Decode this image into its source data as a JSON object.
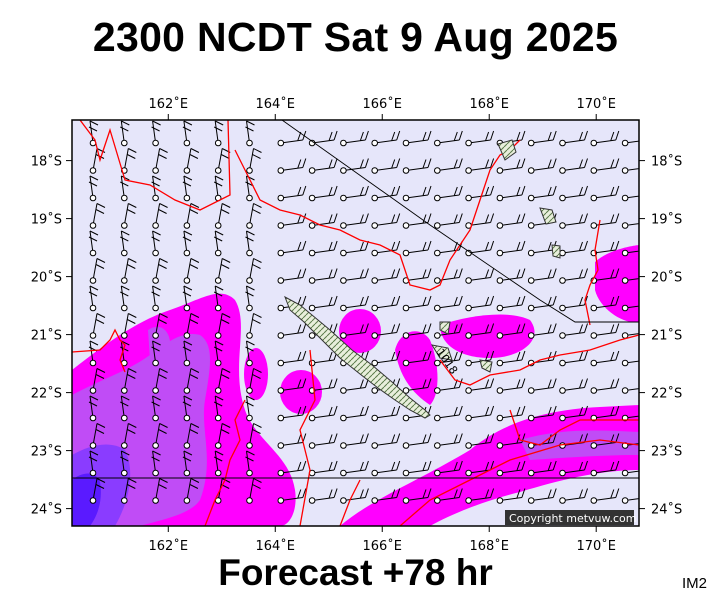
{
  "title": "2300 NCDT Sat 9 Aug 2025",
  "footer": "Forecast +78 hr",
  "image_code": "IM2",
  "copyright": "Copyright metvuw.com",
  "contour_label": "1018",
  "map": {
    "lon_range": [
      160.2,
      170.8
    ],
    "lat_range": [
      -24.3,
      -17.3
    ],
    "lon_ticks": [
      {
        "value": 162,
        "label": "162˚E"
      },
      {
        "value": 164,
        "label": "164˚E"
      },
      {
        "value": 166,
        "label": "166˚E"
      },
      {
        "value": 168,
        "label": "168˚E"
      },
      {
        "value": 170,
        "label": "170˚E"
      }
    ],
    "lat_ticks": [
      {
        "value": -18,
        "label": "18˚S"
      },
      {
        "value": -19,
        "label": "19˚S"
      },
      {
        "value": -20,
        "label": "20˚S"
      },
      {
        "value": -21,
        "label": "21˚S"
      },
      {
        "value": -22,
        "label": "22˚S"
      },
      {
        "value": -23,
        "label": "23˚S"
      },
      {
        "value": -24,
        "label": "24˚S"
      }
    ],
    "colors": {
      "ocean": "#e6e6fa",
      "wind_magenta": "#ff00ff",
      "wind_violet": "#b84cff",
      "wind_blue": "#6a1aff",
      "isobar": "#ff0000",
      "land": "#d8e0c8"
    }
  }
}
